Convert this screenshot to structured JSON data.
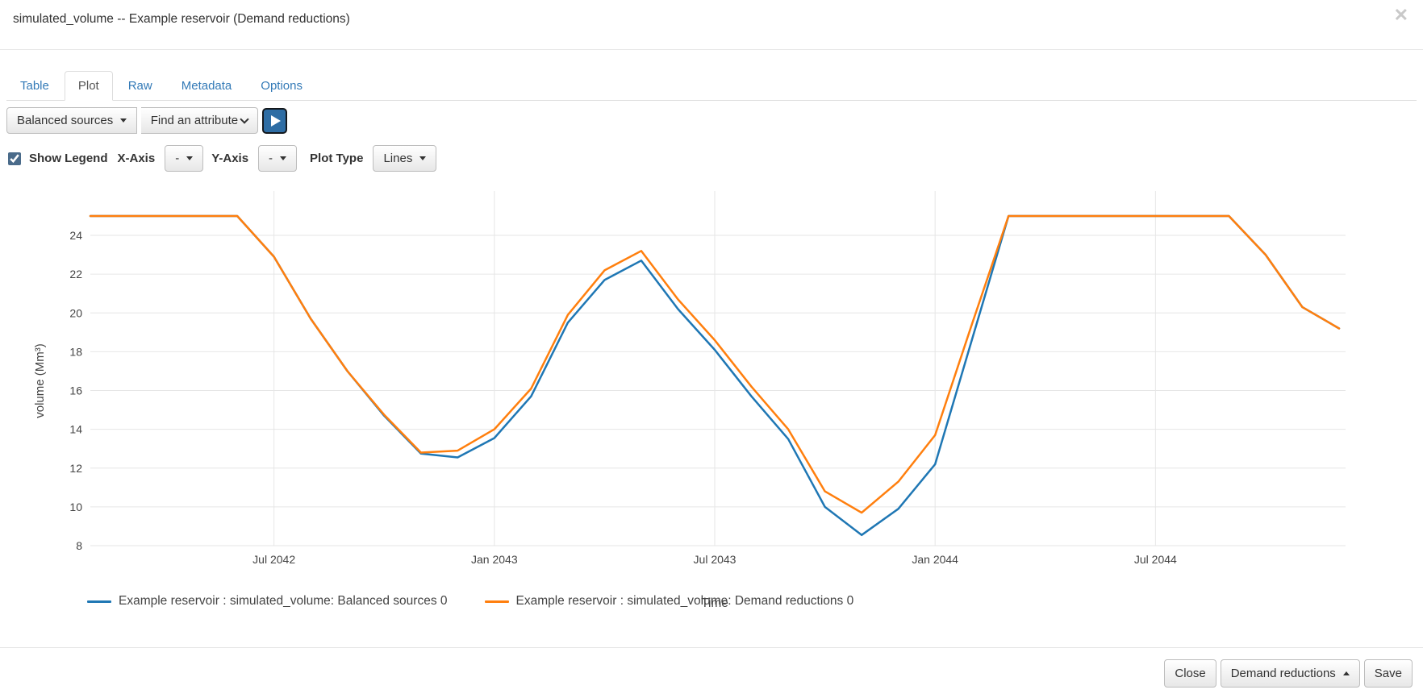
{
  "window": {
    "title": "simulated_volume -- Example reservoir (Demand reductions)",
    "close_icon": "✕"
  },
  "tabs": [
    {
      "label": "Table",
      "active": false
    },
    {
      "label": "Plot",
      "active": true
    },
    {
      "label": "Raw",
      "active": false
    },
    {
      "label": "Metadata",
      "active": false
    },
    {
      "label": "Options",
      "active": false
    }
  ],
  "toolbar": {
    "scenario_selector": "Balanced sources",
    "attribute_selector": "Find an attribute",
    "run_icon": "play-triangle"
  },
  "plot_controls": {
    "show_legend_label": "Show Legend",
    "show_legend_checked": true,
    "x_axis_label": "X-Axis",
    "x_axis_value": "-",
    "y_axis_label": "Y-Axis",
    "y_axis_value": "-",
    "plot_type_label": "Plot Type",
    "plot_type_value": "Lines"
  },
  "chart_data": {
    "type": "line",
    "title": "",
    "xlabel": "Time",
    "ylabel": "volume (Mm³)",
    "ylim": [
      8,
      25
    ],
    "yticks": [
      8,
      10,
      12,
      14,
      16,
      18,
      20,
      22,
      24
    ],
    "grid": true,
    "legend_position": "bottom",
    "x": [
      "Feb 2042",
      "Mar 2042",
      "Apr 2042",
      "May 2042",
      "Jun 2042",
      "Jul 2042",
      "Aug 2042",
      "Sep 2042",
      "Oct 2042",
      "Nov 2042",
      "Dec 2042",
      "Jan 2043",
      "Feb 2043",
      "Mar 2043",
      "Apr 2043",
      "May 2043",
      "Jun 2043",
      "Jul 2043",
      "Aug 2043",
      "Sep 2043",
      "Oct 2043",
      "Nov 2043",
      "Dec 2043",
      "Jan 2044",
      "Feb 2044",
      "Mar 2044",
      "Apr 2044",
      "May 2044",
      "Jun 2044",
      "Jul 2044",
      "Aug 2044",
      "Sep 2044",
      "Oct 2044",
      "Nov 2044",
      "Dec 2044"
    ],
    "xticks": [
      {
        "label": "Jul 2042",
        "index": 5
      },
      {
        "label": "Jan 2043",
        "index": 11
      },
      {
        "label": "Jul 2043",
        "index": 17
      },
      {
        "label": "Jan 2044",
        "index": 23
      },
      {
        "label": "Jul 2044",
        "index": 29
      }
    ],
    "series": [
      {
        "name": "Example reservoir : simulated_volume: Balanced sources 0",
        "color": "#1f77b4",
        "values": [
          25,
          25,
          25,
          25,
          25,
          22.9,
          19.7,
          17.0,
          14.7,
          12.75,
          12.55,
          13.55,
          15.7,
          19.5,
          21.7,
          22.7,
          20.2,
          18.1,
          15.7,
          13.5,
          10.0,
          8.55,
          9.9,
          12.2,
          18.6,
          25,
          25,
          25,
          25,
          25,
          25,
          25,
          23.0,
          20.3,
          19.2
        ]
      },
      {
        "name": "Example reservoir : simulated_volume: Demand reductions 0",
        "color": "#ff7f0e",
        "values": [
          25,
          25,
          25,
          25,
          25,
          22.9,
          19.7,
          17.0,
          14.75,
          12.8,
          12.9,
          14.0,
          16.1,
          19.9,
          22.2,
          23.2,
          20.7,
          18.6,
          16.2,
          14.0,
          10.8,
          9.7,
          11.3,
          13.7,
          19.4,
          25,
          25,
          25,
          25,
          25,
          25,
          25,
          23.0,
          20.3,
          19.2
        ]
      }
    ]
  },
  "footer": {
    "close_label": "Close",
    "scenario_label": "Demand reductions",
    "save_label": "Save"
  }
}
